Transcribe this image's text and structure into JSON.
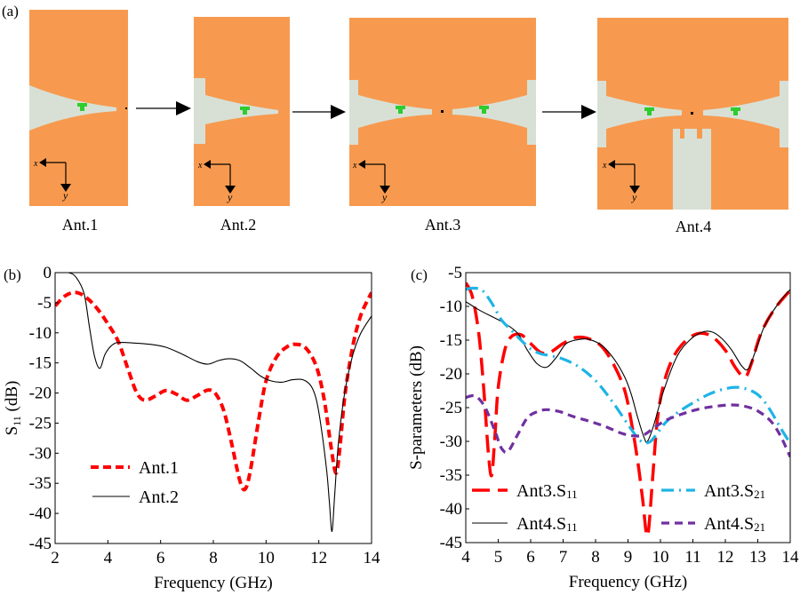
{
  "panel_a": {
    "label": "(a)",
    "antennas": [
      {
        "name": "Ant.1"
      },
      {
        "name": "Ant.2"
      },
      {
        "name": "Ant.3"
      },
      {
        "name": "Ant.4"
      }
    ],
    "axis_x_label": "x",
    "axis_y_label": "y",
    "colors": {
      "metal": "#F79A4F",
      "slot": "#D8E0D6",
      "pad": "#2ECC2E"
    }
  },
  "chart_data": [
    {
      "panel_label": "(b)",
      "type": "line",
      "title": "",
      "xlabel": "Frequency (GHz)",
      "ylabel": "S11 (dB)",
      "ylabel_main": "S",
      "ylabel_sub": "11",
      "ylabel_unit": " (dB)",
      "xlim": [
        2,
        14
      ],
      "ylim": [
        -45,
        0
      ],
      "xticks": [
        2,
        4,
        6,
        8,
        10,
        12,
        14
      ],
      "yticks": [
        0,
        -5,
        -10,
        -15,
        -20,
        -25,
        -30,
        -35,
        -40,
        -45
      ],
      "grid": false,
      "legend_position": "bottom-left",
      "series": [
        {
          "name": "Ant.1",
          "color": "#FF0000",
          "style": "dashed-thick",
          "x": [
            2,
            2.4,
            2.8,
            3.2,
            3.6,
            4.0,
            4.4,
            4.8,
            5.1,
            5.4,
            5.8,
            6.2,
            6.6,
            7.0,
            7.4,
            7.8,
            8.1,
            8.4,
            8.7,
            9.0,
            9.2,
            9.4,
            9.7,
            10.0,
            10.4,
            10.8,
            11.1,
            11.5,
            11.9,
            12.2,
            12.45,
            12.65,
            12.8,
            13.0,
            13.3,
            13.6,
            14.0
          ],
          "y": [
            -5.5,
            -3.8,
            -3.3,
            -4.2,
            -6.0,
            -8.5,
            -11.5,
            -16.5,
            -20.0,
            -21.2,
            -20.5,
            -19.6,
            -20.2,
            -21.2,
            -20.4,
            -19.5,
            -20.2,
            -23.0,
            -28.5,
            -34.5,
            -36.0,
            -33.0,
            -25.0,
            -18.0,
            -14.0,
            -12.3,
            -11.9,
            -12.5,
            -15.5,
            -21.0,
            -28.5,
            -33.3,
            -29.0,
            -20.0,
            -12.0,
            -7.0,
            -3.3
          ]
        },
        {
          "name": "Ant.2",
          "color": "#000000",
          "style": "solid-thin",
          "x": [
            2,
            2.5,
            2.8,
            3.1,
            3.3,
            3.5,
            3.7,
            3.9,
            4.2,
            4.5,
            5.0,
            5.6,
            6.2,
            6.8,
            7.4,
            7.8,
            8.2,
            8.6,
            9.0,
            9.4,
            9.8,
            10.2,
            10.6,
            11.0,
            11.4,
            11.7,
            11.9,
            12.1,
            12.3,
            12.4,
            12.5,
            12.6,
            12.75,
            13.0,
            13.3,
            13.6,
            14.0
          ],
          "y": [
            0,
            0,
            -0.8,
            -3.5,
            -9.0,
            -14.0,
            -15.9,
            -13.5,
            -11.9,
            -11.6,
            -11.7,
            -11.9,
            -12.4,
            -13.5,
            -14.8,
            -15.2,
            -14.6,
            -14.3,
            -14.6,
            -15.8,
            -17.2,
            -18.0,
            -18.2,
            -17.8,
            -17.8,
            -18.8,
            -21.0,
            -26.0,
            -33.0,
            -38.0,
            -43.0,
            -37.0,
            -28.0,
            -19.5,
            -13.5,
            -10.0,
            -7.2
          ]
        }
      ]
    },
    {
      "panel_label": "(c)",
      "type": "line",
      "title": "",
      "xlabel": "Frequency (GHz)",
      "ylabel": "S-parameters (dB)",
      "xlim": [
        4,
        14
      ],
      "ylim": [
        -45,
        -5
      ],
      "xticks": [
        4,
        5,
        6,
        7,
        8,
        9,
        10,
        11,
        12,
        13,
        14
      ],
      "yticks": [
        -5,
        -10,
        -15,
        -20,
        -25,
        -30,
        -35,
        -40,
        -45
      ],
      "grid": false,
      "legend_position": "bottom (two columns)",
      "series": [
        {
          "name": "Ant3.S11",
          "name_main": "Ant3.S",
          "name_sub": "11",
          "color": "#FF0000",
          "style": "long-dash",
          "x": [
            4,
            4.2,
            4.4,
            4.55,
            4.7,
            4.8,
            4.9,
            5.0,
            5.2,
            5.4,
            5.7,
            6.0,
            6.3,
            6.6,
            7.0,
            7.4,
            7.8,
            8.2,
            8.6,
            8.9,
            9.1,
            9.3,
            9.45,
            9.6,
            9.75,
            9.9,
            10.1,
            10.4,
            10.8,
            11.2,
            11.6,
            12.0,
            12.3,
            12.6,
            12.8,
            13.1,
            13.5,
            14.0
          ],
          "y": [
            -6.5,
            -8.5,
            -14.0,
            -22.0,
            -32.0,
            -35.0,
            -29.0,
            -22.0,
            -16.5,
            -14.5,
            -14.2,
            -15.5,
            -16.8,
            -16.8,
            -15.5,
            -14.6,
            -14.8,
            -16.0,
            -19.0,
            -22.5,
            -27.0,
            -33.0,
            -38.5,
            -44.0,
            -36.0,
            -27.0,
            -21.5,
            -17.5,
            -15.0,
            -14.0,
            -14.5,
            -16.5,
            -19.0,
            -20.5,
            -18.5,
            -14.0,
            -10.5,
            -7.6
          ]
        },
        {
          "name": "Ant4.S11",
          "name_main": "Ant4.S",
          "name_sub": "11",
          "color": "#000000",
          "style": "solid-thin",
          "x": [
            4,
            4.4,
            4.8,
            5.2,
            5.6,
            5.9,
            6.2,
            6.5,
            6.8,
            7.1,
            7.5,
            7.8,
            8.2,
            8.6,
            8.9,
            9.1,
            9.3,
            9.5,
            9.6,
            9.8,
            10.1,
            10.5,
            10.9,
            11.3,
            11.6,
            11.9,
            12.2,
            12.5,
            12.7,
            12.9,
            13.2,
            13.6,
            14.0
          ],
          "y": [
            -9.3,
            -10.5,
            -11.5,
            -12.5,
            -14.0,
            -16.5,
            -18.5,
            -19.0,
            -17.5,
            -15.5,
            -14.9,
            -14.9,
            -15.8,
            -18.0,
            -20.5,
            -23.0,
            -26.5,
            -29.5,
            -30.0,
            -27.5,
            -22.5,
            -17.5,
            -15.0,
            -13.8,
            -13.8,
            -14.8,
            -16.5,
            -18.8,
            -19.3,
            -17.0,
            -13.0,
            -9.8,
            -7.5
          ]
        },
        {
          "name": "Ant3.S21",
          "name_main": "Ant3.S",
          "name_sub": "21",
          "color": "#1EB4E6",
          "style": "dash-dot",
          "x": [
            4,
            4.2,
            4.5,
            4.8,
            5.1,
            5.4,
            5.7,
            6.0,
            6.3,
            6.6,
            7.0,
            7.5,
            8.0,
            8.5,
            9.0,
            9.3,
            9.5,
            9.7,
            9.9,
            10.2,
            10.6,
            11.0,
            11.5,
            12.0,
            12.4,
            12.8,
            13.1,
            13.4,
            13.7,
            14.0
          ],
          "y": [
            -7.5,
            -7.3,
            -7.6,
            -9.5,
            -12.0,
            -13.5,
            -15.0,
            -16.3,
            -17.0,
            -17.3,
            -17.8,
            -19.0,
            -21.0,
            -24.0,
            -27.5,
            -29.5,
            -30.2,
            -30.0,
            -28.8,
            -27.0,
            -25.5,
            -24.3,
            -23.0,
            -22.2,
            -22.0,
            -22.5,
            -23.5,
            -25.5,
            -28.0,
            -30.3
          ]
        },
        {
          "name": "Ant4.S21",
          "name_main": "Ant4.S",
          "name_sub": "21",
          "color": "#7030A0",
          "style": "short-dash",
          "x": [
            4,
            4.3,
            4.6,
            4.9,
            5.1,
            5.3,
            5.6,
            5.9,
            6.2,
            6.5,
            6.9,
            7.3,
            7.8,
            8.3,
            8.8,
            9.2,
            9.5,
            9.8,
            10.2,
            10.7,
            11.2,
            11.7,
            12.2,
            12.6,
            13.0,
            13.4,
            13.7,
            14.0
          ],
          "y": [
            -23.5,
            -23.3,
            -25.0,
            -28.5,
            -31.0,
            -31.5,
            -29.0,
            -26.5,
            -25.6,
            -25.3,
            -25.6,
            -26.3,
            -27.0,
            -27.8,
            -28.8,
            -29.2,
            -29.0,
            -28.0,
            -26.8,
            -25.9,
            -25.2,
            -24.8,
            -24.6,
            -24.8,
            -25.5,
            -27.0,
            -29.2,
            -32.3
          ]
        }
      ]
    }
  ]
}
